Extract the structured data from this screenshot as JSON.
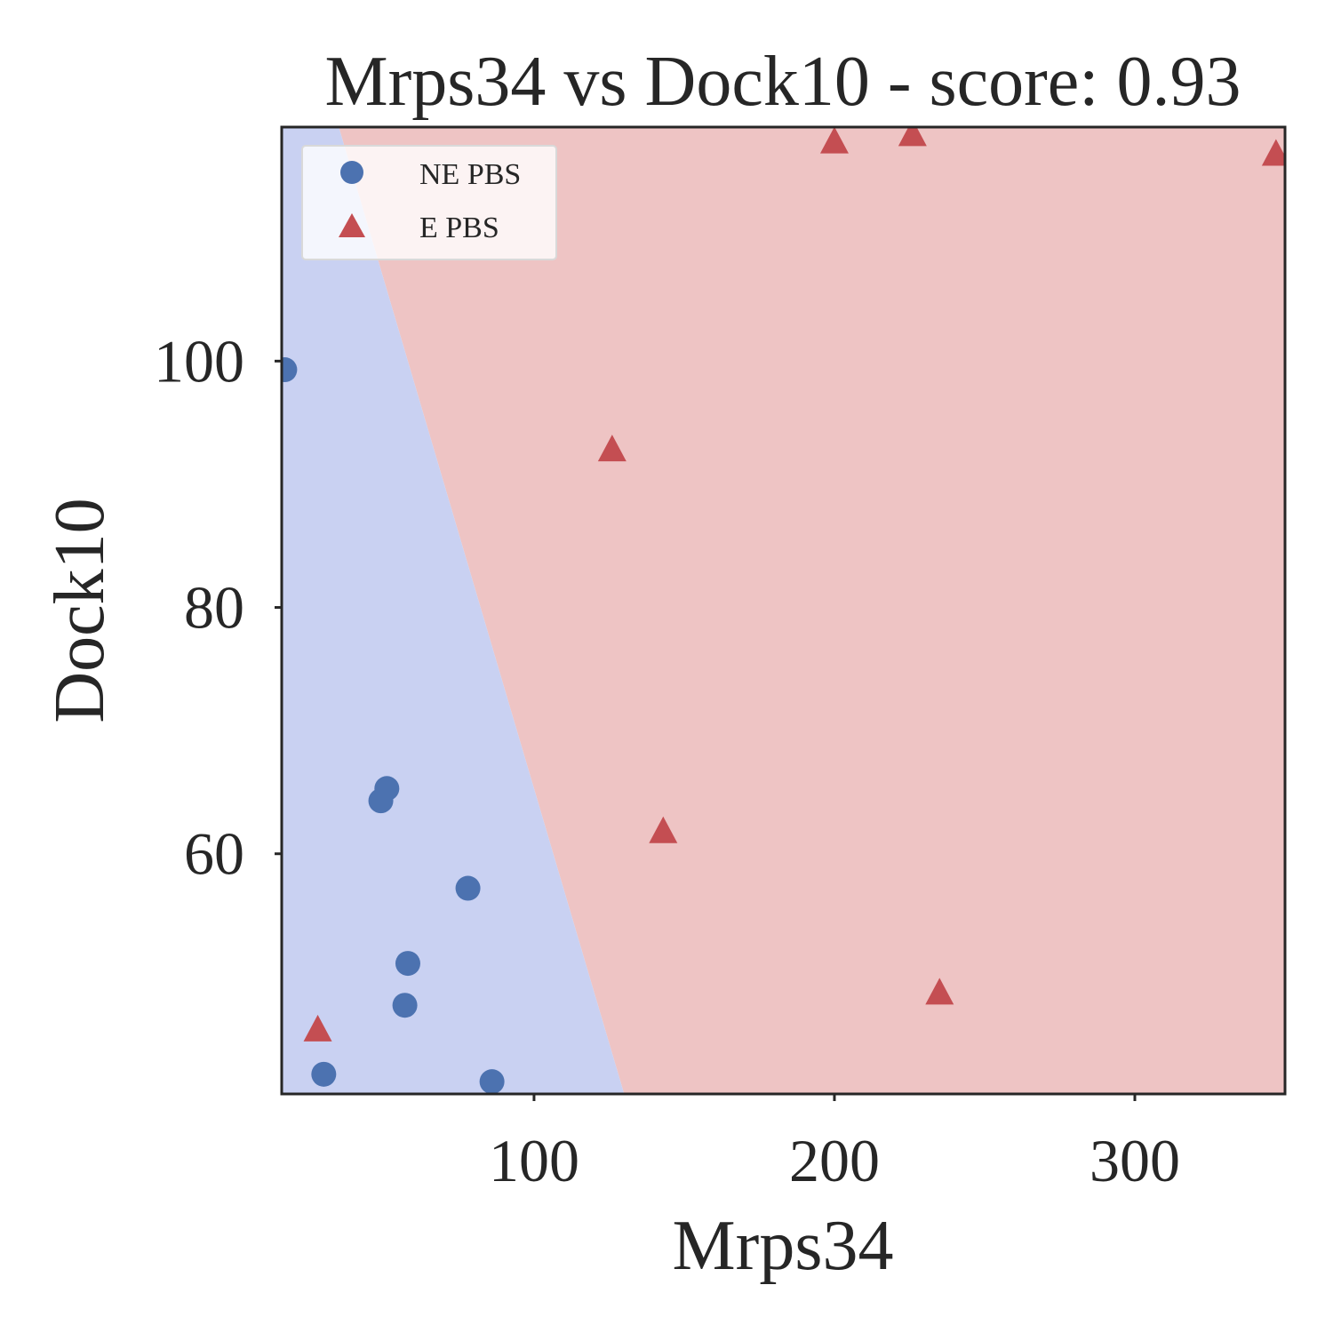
{
  "chart_data": {
    "type": "scatter",
    "title": "Mrps34 vs Dock10 - score: 0.93",
    "xlabel": "Mrps34",
    "ylabel": "Dock10",
    "xlim": [
      16,
      350
    ],
    "ylim": [
      40.5,
      119
    ],
    "xticks": [
      100,
      200,
      300
    ],
    "yticks": [
      60,
      80,
      100
    ],
    "grid": false,
    "legend_position": "top-left",
    "decision_boundary": {
      "line": [
        [
          35,
          119
        ],
        [
          130,
          40.5
        ]
      ],
      "left_region": "NE PBS",
      "right_region": "E PBS"
    },
    "series": [
      {
        "name": "NE PBS",
        "marker": "circle",
        "color": "#4c72b0",
        "points": [
          [
            17,
            99.3
          ],
          [
            51,
            65.3
          ],
          [
            49,
            64.3
          ],
          [
            78,
            57.2
          ],
          [
            58,
            51.1
          ],
          [
            57,
            47.7
          ],
          [
            30,
            42.1
          ],
          [
            86,
            41.5
          ]
        ]
      },
      {
        "name": "E PBS",
        "marker": "triangle",
        "color": "#c44e52",
        "points": [
          [
            200,
            117.8
          ],
          [
            226,
            118.4
          ],
          [
            347,
            116.8
          ],
          [
            126,
            92.8
          ],
          [
            143,
            61.8
          ],
          [
            235,
            48.7
          ],
          [
            28,
            45.7
          ]
        ]
      }
    ],
    "colors": {
      "ne_region": "#c9d1f2",
      "e_region": "#eec4c4",
      "ne_marker": "#4c72b0",
      "e_marker": "#c44e52",
      "axes": "#262626"
    }
  }
}
